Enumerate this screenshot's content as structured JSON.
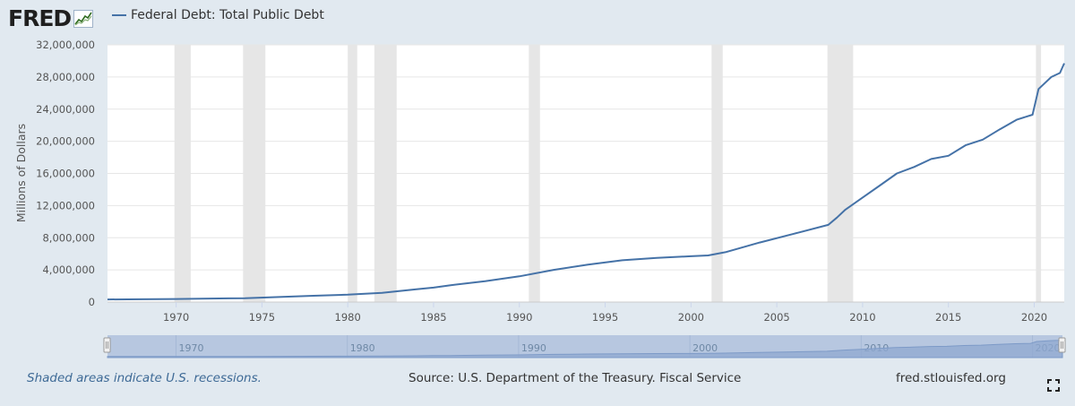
{
  "brand": {
    "logo_text": "FRED",
    "logo_icon": "line-chart-icon"
  },
  "legend": {
    "label": "Federal Debt: Total Public Debt",
    "color": "#4572a7"
  },
  "footer": {
    "recession_note": "Shaded areas indicate U.S. recessions.",
    "source": "Source: U.S. Department of the Treasury. Fiscal Service",
    "site": "fred.stlouisfed.org",
    "fullscreen_icon": "fullscreen-icon"
  },
  "colors": {
    "background": "#e1e9f0",
    "plot_background": "#ffffff",
    "series": "#4572a7",
    "recession": "#e6e6e6",
    "navigator_fill": "#b7c7e0",
    "navigator_series": "#7d9ac7"
  },
  "chart_data": {
    "type": "line",
    "title": "",
    "xlabel": "",
    "ylabel": "Millions of Dollars",
    "xlim": [
      1966.0,
      2021.75
    ],
    "ylim": [
      0,
      32000000
    ],
    "grid": true,
    "legend_position": "top-left",
    "x_ticks": [
      1970,
      1975,
      1980,
      1985,
      1990,
      1995,
      2000,
      2005,
      2010,
      2015,
      2020
    ],
    "y_ticks": [
      {
        "v": 0,
        "label": "0"
      },
      {
        "v": 4000000,
        "label": "4,000,000"
      },
      {
        "v": 8000000,
        "label": "8,000,000"
      },
      {
        "v": 12000000,
        "label": "12,000,000"
      },
      {
        "v": 16000000,
        "label": "16,000,000"
      },
      {
        "v": 20000000,
        "label": "20,000,000"
      },
      {
        "v": 24000000,
        "label": "24,000,000"
      },
      {
        "v": 28000000,
        "label": "28,000,000"
      },
      {
        "v": 32000000,
        "label": "32,000,000"
      }
    ],
    "navigator_ticks": [
      "1970",
      "1980",
      "1990",
      "2000",
      "2010",
      "2020"
    ],
    "recessions": [
      [
        1969.9,
        1970.85
      ],
      [
        1973.9,
        1975.2
      ],
      [
        1980.0,
        1980.55
      ],
      [
        1981.55,
        1982.85
      ],
      [
        1990.55,
        1991.2
      ],
      [
        2001.2,
        2001.85
      ],
      [
        2007.95,
        2009.45
      ],
      [
        2020.1,
        2020.4
      ]
    ],
    "series": [
      {
        "name": "Federal Debt: Total Public Debt",
        "x": [
          1966.0,
          1968,
          1970,
          1972,
          1974,
          1976,
          1978,
          1980,
          1982,
          1984,
          1985,
          1986,
          1988,
          1990,
          1992,
          1994,
          1996,
          1998,
          2000,
          2001,
          2002,
          2004,
          2006,
          2008,
          2008.5,
          2009,
          2010,
          2011,
          2012,
          2013,
          2014,
          2015,
          2016,
          2017,
          2018,
          2019,
          2019.9,
          2020.25,
          2020.5,
          2021,
          2021.5,
          2021.75
        ],
        "values": [
          320000,
          350000,
          380000,
          430000,
          480000,
          620000,
          780000,
          910000,
          1150000,
          1580000,
          1800000,
          2100000,
          2600000,
          3200000,
          4000000,
          4650000,
          5200000,
          5500000,
          5700000,
          5800000,
          6200000,
          7400000,
          8500000,
          9600000,
          10500000,
          11500000,
          13000000,
          14500000,
          16000000,
          16800000,
          17800000,
          18200000,
          19500000,
          20200000,
          21500000,
          22700000,
          23300000,
          26500000,
          27000000,
          28000000,
          28500000,
          29700000
        ]
      }
    ]
  }
}
